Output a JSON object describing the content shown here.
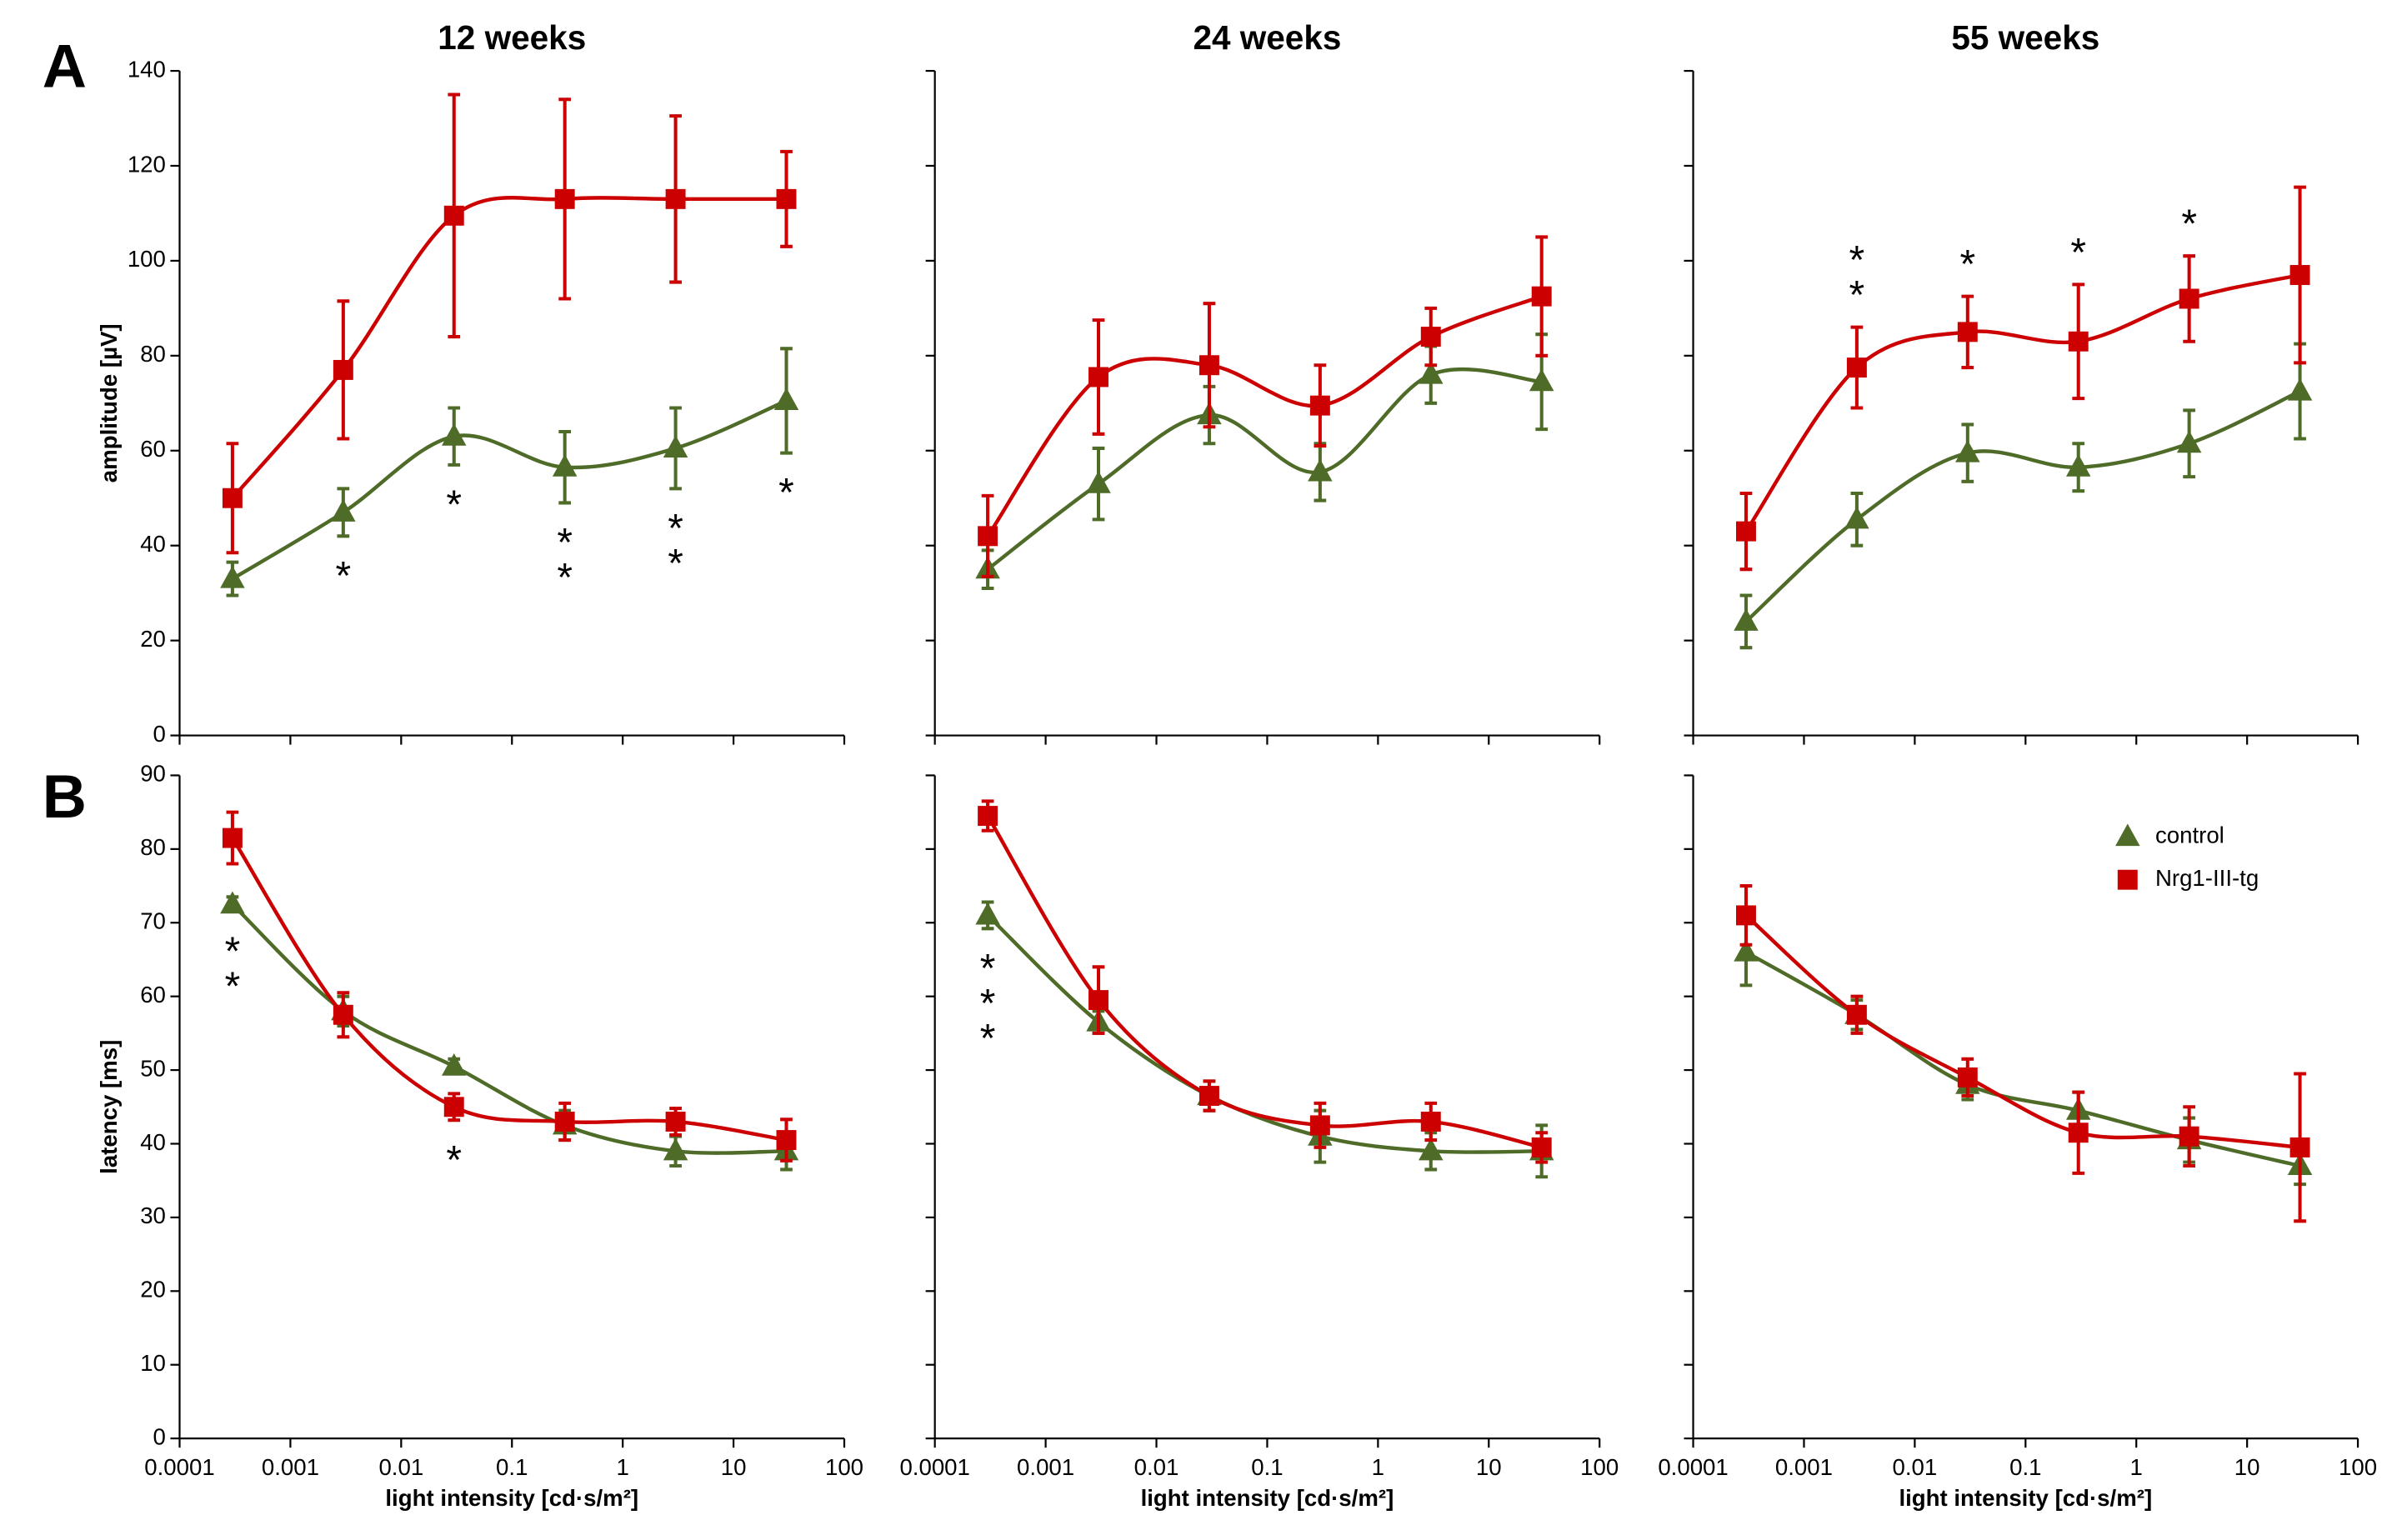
{
  "chart_data": [
    {
      "type": "line",
      "panel_label": "A",
      "title": "12 weeks",
      "ylabel": "amplitude [µV]",
      "xscale": "log",
      "xlim": [
        0.0001,
        100
      ],
      "ylim": [
        0,
        140
      ],
      "yticks": [
        0,
        20,
        40,
        60,
        80,
        100,
        120,
        140
      ],
      "x": [
        0.0003,
        0.003,
        0.03,
        0.3,
        3,
        30
      ],
      "series": [
        {
          "color": "#4e6b28",
          "marker": "triangle",
          "values": [
            33,
            47,
            63,
            56.5,
            60.5,
            70.5
          ],
          "errors": [
            3.5,
            5,
            6,
            7.5,
            8.5,
            11
          ]
        },
        {
          "color": "#cc0000",
          "marker": "square",
          "values": [
            50,
            77,
            109.5,
            113,
            113,
            113
          ],
          "errors": [
            11.5,
            14.5,
            25.5,
            21,
            17.5,
            10
          ]
        }
      ],
      "annotation_side": "below",
      "annotations": [
        {
          "x": 0.003,
          "text": "*"
        },
        {
          "x": 0.03,
          "text": "*"
        },
        {
          "x": 0.3,
          "text": "**"
        },
        {
          "x": 3,
          "text": "**"
        },
        {
          "x": 30,
          "text": "*"
        }
      ]
    },
    {
      "type": "line",
      "title": "24 weeks",
      "xscale": "log",
      "xlim": [
        0.0001,
        100
      ],
      "ylim": [
        0,
        140
      ],
      "x": [
        0.0003,
        0.003,
        0.03,
        0.3,
        3,
        30
      ],
      "series": [
        {
          "color": "#4e6b28",
          "marker": "triangle",
          "values": [
            35,
            53,
            67.5,
            55.5,
            76,
            74.5
          ],
          "errors": [
            4,
            7.5,
            6,
            6,
            6,
            10
          ]
        },
        {
          "color": "#cc0000",
          "marker": "square",
          "values": [
            42,
            75.5,
            78,
            69.5,
            84,
            92.5
          ],
          "errors": [
            8.5,
            12,
            13,
            8.5,
            6,
            12.5
          ]
        }
      ]
    },
    {
      "type": "line",
      "title": "55 weeks",
      "xscale": "log",
      "xlim": [
        0.0001,
        100
      ],
      "ylim": [
        0,
        140
      ],
      "x": [
        0.0003,
        0.003,
        0.03,
        0.3,
        3,
        30
      ],
      "series": [
        {
          "color": "#4e6b28",
          "marker": "triangle",
          "values": [
            24,
            45.5,
            59.5,
            56.5,
            61.5,
            72.5
          ],
          "errors": [
            5.5,
            5.5,
            6,
            5,
            7,
            10
          ]
        },
        {
          "color": "#cc0000",
          "marker": "square",
          "values": [
            43,
            77.5,
            85,
            83,
            92,
            97
          ],
          "errors": [
            8,
            8.5,
            7.5,
            12,
            9,
            18.5
          ]
        }
      ],
      "annotation_side": "above",
      "annotations": [
        {
          "x": 0.003,
          "text": "**"
        },
        {
          "x": 0.03,
          "text": "*"
        },
        {
          "x": 0.3,
          "text": "*"
        },
        {
          "x": 3,
          "text": "*"
        }
      ]
    },
    {
      "type": "line",
      "panel_label": "B",
      "ylabel": "latency [ms]",
      "xlabel": "light intensity [cd·s/m²]",
      "xscale": "log",
      "xlim": [
        0.0001,
        100
      ],
      "ylim": [
        0,
        90
      ],
      "yticks": [
        0,
        10,
        20,
        30,
        40,
        50,
        60,
        70,
        80,
        90
      ],
      "xticks": [
        0.0001,
        0.001,
        0.01,
        0.1,
        1,
        10,
        100
      ],
      "x": [
        0.0003,
        0.003,
        0.03,
        0.3,
        3,
        30
      ],
      "series": [
        {
          "color": "#4e6b28",
          "marker": "triangle",
          "values": [
            72.5,
            58,
            50.5,
            42.5,
            39,
            39
          ],
          "errors": [
            1,
            2,
            1,
            2,
            2,
            2.5
          ]
        },
        {
          "color": "#cc0000",
          "marker": "square",
          "values": [
            81.5,
            57.5,
            45,
            43,
            43,
            40.5
          ],
          "errors": [
            3.5,
            3,
            1.8,
            2.5,
            1.8,
            2.8
          ]
        }
      ],
      "annotation_side": "below",
      "annotations": [
        {
          "x": 0.0003,
          "text": "**"
        },
        {
          "x": 0.03,
          "text": "*"
        }
      ]
    },
    {
      "type": "line",
      "xlabel": "light intensity [cd·s/m²]",
      "xscale": "log",
      "xlim": [
        0.0001,
        100
      ],
      "ylim": [
        0,
        90
      ],
      "xticks": [
        0.0001,
        0.001,
        0.01,
        0.1,
        1,
        10,
        100
      ],
      "x": [
        0.0003,
        0.003,
        0.03,
        0.3,
        3,
        30
      ],
      "series": [
        {
          "color": "#4e6b28",
          "marker": "triangle",
          "values": [
            71,
            56.5,
            46.5,
            41,
            39,
            39
          ],
          "errors": [
            1.8,
            1.5,
            2,
            3.5,
            2.5,
            3.5
          ]
        },
        {
          "color": "#cc0000",
          "marker": "square",
          "values": [
            84.5,
            59.5,
            46.5,
            42.5,
            43,
            39.5
          ],
          "errors": [
            2,
            4.5,
            2,
            3,
            2.5,
            2
          ]
        }
      ],
      "annotation_side": "below",
      "annotations": [
        {
          "x": 0.0003,
          "text": "***"
        }
      ]
    },
    {
      "type": "line",
      "xlabel": "light intensity [cd·s/m²]",
      "xscale": "log",
      "xlim": [
        0.0001,
        100
      ],
      "ylim": [
        0,
        90
      ],
      "xticks": [
        0.0001,
        0.001,
        0.01,
        0.1,
        1,
        10,
        100
      ],
      "x": [
        0.0003,
        0.003,
        0.03,
        0.3,
        3,
        30
      ],
      "legend": "upper right",
      "series": [
        {
          "name": "control",
          "color": "#4e6b28",
          "marker": "triangle",
          "values": [
            66,
            57.5,
            48,
            44.5,
            40.5,
            37
          ],
          "errors": [
            4.5,
            2,
            2,
            2.5,
            3,
            2.5
          ]
        },
        {
          "name": "Nrg1-III-tg",
          "color": "#cc0000",
          "marker": "square",
          "values": [
            71,
            57.5,
            49,
            41.5,
            41,
            39.5
          ],
          "errors": [
            4,
            2.5,
            2.5,
            5.5,
            4,
            10
          ]
        }
      ]
    }
  ]
}
